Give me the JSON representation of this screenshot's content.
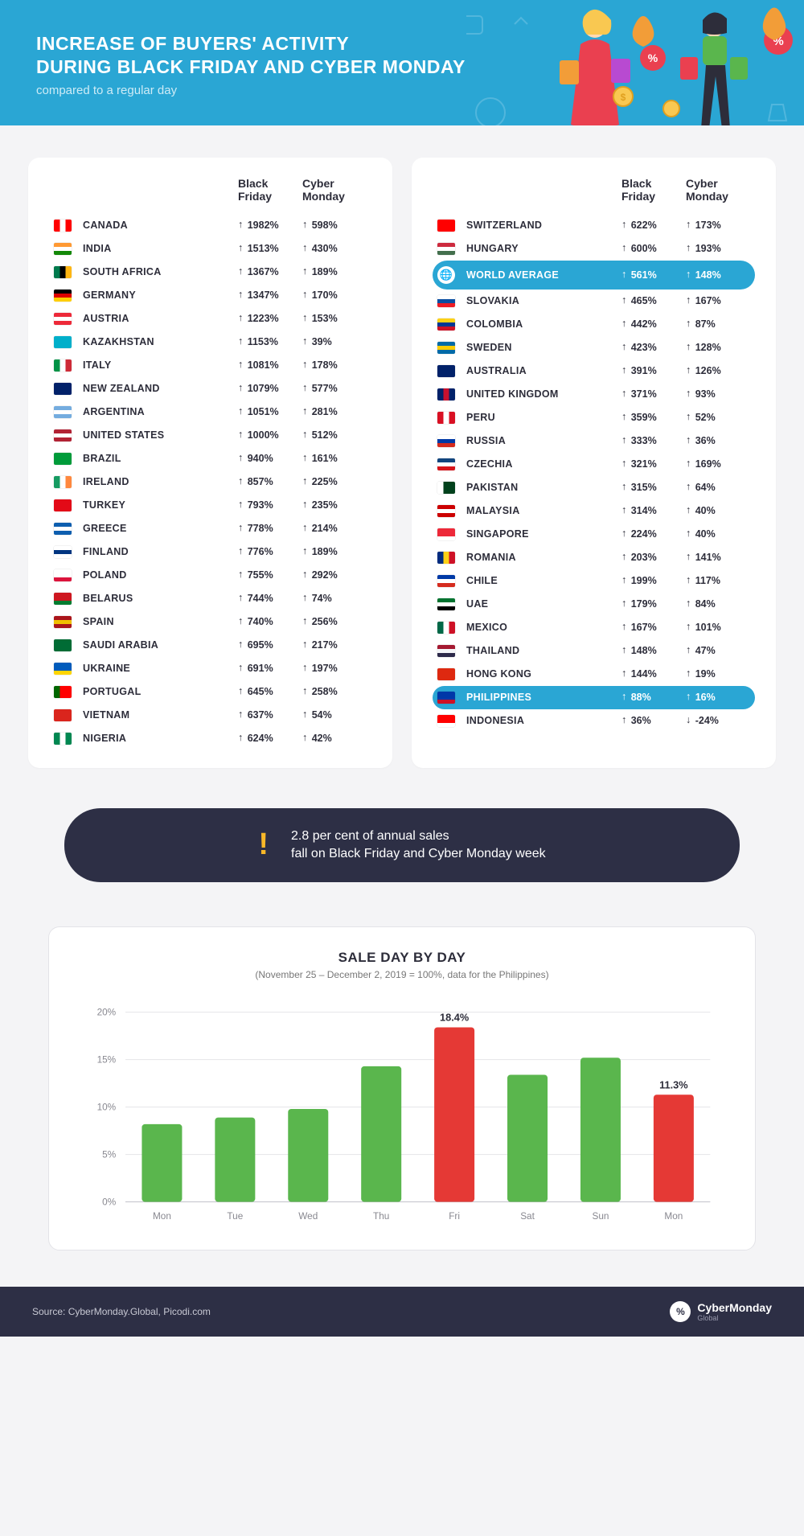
{
  "header": {
    "title_line1": "INCREASE OF BUYERS' ACTIVITY",
    "title_line2": "DURING BLACK FRIDAY AND CYBER MONDAY",
    "subtitle": "compared to a regular day",
    "bg_color": "#2aa6d4",
    "text_color": "#ffffff",
    "sub_text_color": "#cdebf6"
  },
  "table": {
    "col_bf": "Black\nFriday",
    "col_cm": "Cyber\nMonday",
    "arrow_up": "↑",
    "arrow_down": "↓",
    "highlight_bg": "#2aa6d4",
    "highlight_text": "#ffffff"
  },
  "left": [
    {
      "name": "CANADA",
      "bf": "1982%",
      "cm": "598%",
      "flag": [
        "#ff0000",
        "#ffffff",
        "#ff0000"
      ],
      "dir_bf": "up",
      "dir_cm": "up"
    },
    {
      "name": "INDIA",
      "bf": "1513%",
      "cm": "430%",
      "flag": [
        "#ff9933",
        "#ffffff",
        "#138808"
      ],
      "orient": "h",
      "dir_bf": "up",
      "dir_cm": "up"
    },
    {
      "name": "SOUTH AFRICA",
      "bf": "1367%",
      "cm": "189%",
      "flag": [
        "#007a4d",
        "#000000",
        "#ffb612"
      ],
      "dir_bf": "up",
      "dir_cm": "up"
    },
    {
      "name": "GERMANY",
      "bf": "1347%",
      "cm": "170%",
      "flag": [
        "#000000",
        "#dd0000",
        "#ffce00"
      ],
      "orient": "h",
      "dir_bf": "up",
      "dir_cm": "up"
    },
    {
      "name": "AUSTRIA",
      "bf": "1223%",
      "cm": "153%",
      "flag": [
        "#ed2939",
        "#ffffff",
        "#ed2939"
      ],
      "orient": "h",
      "dir_bf": "up",
      "dir_cm": "up"
    },
    {
      "name": "KAZAKHSTAN",
      "bf": "1153%",
      "cm": "39%",
      "flag": [
        "#00afca",
        "#00afca",
        "#00afca"
      ],
      "dir_bf": "up",
      "dir_cm": "up"
    },
    {
      "name": "ITALY",
      "bf": "1081%",
      "cm": "178%",
      "flag": [
        "#009246",
        "#ffffff",
        "#ce2b37"
      ],
      "dir_bf": "up",
      "dir_cm": "up"
    },
    {
      "name": "NEW ZEALAND",
      "bf": "1079%",
      "cm": "577%",
      "flag": [
        "#012169",
        "#012169",
        "#012169"
      ],
      "dir_bf": "up",
      "dir_cm": "up"
    },
    {
      "name": "ARGENTINA",
      "bf": "1051%",
      "cm": "281%",
      "flag": [
        "#74acdf",
        "#ffffff",
        "#74acdf"
      ],
      "orient": "h",
      "dir_bf": "up",
      "dir_cm": "up"
    },
    {
      "name": "UNITED STATES",
      "bf": "1000%",
      "cm": "512%",
      "flag": [
        "#b22234",
        "#ffffff",
        "#b22234"
      ],
      "orient": "h",
      "dir_bf": "up",
      "dir_cm": "up"
    },
    {
      "name": "BRAZIL",
      "bf": "940%",
      "cm": "161%",
      "flag": [
        "#009b3a",
        "#009b3a",
        "#009b3a"
      ],
      "dir_bf": "up",
      "dir_cm": "up"
    },
    {
      "name": "IRELAND",
      "bf": "857%",
      "cm": "225%",
      "flag": [
        "#169b62",
        "#ffffff",
        "#ff883e"
      ],
      "dir_bf": "up",
      "dir_cm": "up"
    },
    {
      "name": "TURKEY",
      "bf": "793%",
      "cm": "235%",
      "flag": [
        "#e30a17",
        "#e30a17",
        "#e30a17"
      ],
      "dir_bf": "up",
      "dir_cm": "up"
    },
    {
      "name": "GREECE",
      "bf": "778%",
      "cm": "214%",
      "flag": [
        "#0d5eaf",
        "#ffffff",
        "#0d5eaf"
      ],
      "orient": "h",
      "dir_bf": "up",
      "dir_cm": "up"
    },
    {
      "name": "FINLAND",
      "bf": "776%",
      "cm": "189%",
      "flag": [
        "#ffffff",
        "#003580",
        "#ffffff"
      ],
      "orient": "h",
      "dir_bf": "up",
      "dir_cm": "up"
    },
    {
      "name": "POLAND",
      "bf": "755%",
      "cm": "292%",
      "flag": [
        "#ffffff",
        "#ffffff",
        "#dc143c"
      ],
      "orient": "h",
      "dir_bf": "up",
      "dir_cm": "up"
    },
    {
      "name": "BELARUS",
      "bf": "744%",
      "cm": "74%",
      "flag": [
        "#ce1720",
        "#ce1720",
        "#007c30"
      ],
      "orient": "h",
      "dir_bf": "up",
      "dir_cm": "up"
    },
    {
      "name": "SPAIN",
      "bf": "740%",
      "cm": "256%",
      "flag": [
        "#aa151b",
        "#f1bf00",
        "#aa151b"
      ],
      "orient": "h",
      "dir_bf": "up",
      "dir_cm": "up"
    },
    {
      "name": "SAUDI ARABIA",
      "bf": "695%",
      "cm": "217%",
      "flag": [
        "#006c35",
        "#006c35",
        "#006c35"
      ],
      "dir_bf": "up",
      "dir_cm": "up"
    },
    {
      "name": "UKRAINE",
      "bf": "691%",
      "cm": "197%",
      "flag": [
        "#005bbb",
        "#005bbb",
        "#ffd500"
      ],
      "orient": "h",
      "dir_bf": "up",
      "dir_cm": "up"
    },
    {
      "name": "PORTUGAL",
      "bf": "645%",
      "cm": "258%",
      "flag": [
        "#006600",
        "#ff0000",
        "#ff0000"
      ],
      "dir_bf": "up",
      "dir_cm": "up"
    },
    {
      "name": "VIETNAM",
      "bf": "637%",
      "cm": "54%",
      "flag": [
        "#da251d",
        "#da251d",
        "#da251d"
      ],
      "dir_bf": "up",
      "dir_cm": "up"
    },
    {
      "name": "NIGERIA",
      "bf": "624%",
      "cm": "42%",
      "flag": [
        "#008751",
        "#ffffff",
        "#008751"
      ],
      "dir_bf": "up",
      "dir_cm": "up"
    }
  ],
  "right": [
    {
      "name": "SWITZERLAND",
      "bf": "622%",
      "cm": "173%",
      "flag": [
        "#ff0000",
        "#ff0000",
        "#ff0000"
      ],
      "dir_bf": "up",
      "dir_cm": "up"
    },
    {
      "name": "HUNGARY",
      "bf": "600%",
      "cm": "193%",
      "flag": [
        "#cd2a3e",
        "#ffffff",
        "#436f4d"
      ],
      "orient": "h",
      "dir_bf": "up",
      "dir_cm": "up"
    },
    {
      "name": "WORLD AVERAGE",
      "bf": "561%",
      "cm": "148%",
      "globe": true,
      "highlight": true,
      "dir_bf": "up",
      "dir_cm": "up"
    },
    {
      "name": "SLOVAKIA",
      "bf": "465%",
      "cm": "167%",
      "flag": [
        "#ffffff",
        "#0b4ea2",
        "#ee1c25"
      ],
      "orient": "h",
      "dir_bf": "up",
      "dir_cm": "up"
    },
    {
      "name": "COLOMBIA",
      "bf": "442%",
      "cm": "87%",
      "flag": [
        "#fcd116",
        "#003893",
        "#ce1126"
      ],
      "orient": "h",
      "dir_bf": "up",
      "dir_cm": "up"
    },
    {
      "name": "SWEDEN",
      "bf": "423%",
      "cm": "128%",
      "flag": [
        "#006aa7",
        "#fecc00",
        "#006aa7"
      ],
      "orient": "h",
      "dir_bf": "up",
      "dir_cm": "up"
    },
    {
      "name": "AUSTRALIA",
      "bf": "391%",
      "cm": "126%",
      "flag": [
        "#012169",
        "#012169",
        "#012169"
      ],
      "dir_bf": "up",
      "dir_cm": "up"
    },
    {
      "name": "UNITED KINGDOM",
      "bf": "371%",
      "cm": "93%",
      "flag": [
        "#012169",
        "#c8102e",
        "#012169"
      ],
      "dir_bf": "up",
      "dir_cm": "up"
    },
    {
      "name": "PERU",
      "bf": "359%",
      "cm": "52%",
      "flag": [
        "#d91023",
        "#ffffff",
        "#d91023"
      ],
      "dir_bf": "up",
      "dir_cm": "up"
    },
    {
      "name": "RUSSIA",
      "bf": "333%",
      "cm": "36%",
      "flag": [
        "#ffffff",
        "#0039a6",
        "#d52b1e"
      ],
      "orient": "h",
      "dir_bf": "up",
      "dir_cm": "up"
    },
    {
      "name": "CZECHIA",
      "bf": "321%",
      "cm": "169%",
      "flag": [
        "#11457e",
        "#ffffff",
        "#d7141a"
      ],
      "orient": "h",
      "dir_bf": "up",
      "dir_cm": "up"
    },
    {
      "name": "PAKISTAN",
      "bf": "315%",
      "cm": "64%",
      "flag": [
        "#ffffff",
        "#01411c",
        "#01411c"
      ],
      "dir_bf": "up",
      "dir_cm": "up"
    },
    {
      "name": "MALAYSIA",
      "bf": "314%",
      "cm": "40%",
      "flag": [
        "#cc0001",
        "#ffffff",
        "#cc0001"
      ],
      "orient": "h",
      "dir_bf": "up",
      "dir_cm": "up"
    },
    {
      "name": "SINGAPORE",
      "bf": "224%",
      "cm": "40%",
      "flag": [
        "#ed2939",
        "#ed2939",
        "#ffffff"
      ],
      "orient": "h",
      "dir_bf": "up",
      "dir_cm": "up"
    },
    {
      "name": "ROMANIA",
      "bf": "203%",
      "cm": "141%",
      "flag": [
        "#002b7f",
        "#fcd116",
        "#ce1126"
      ],
      "dir_bf": "up",
      "dir_cm": "up"
    },
    {
      "name": "CHILE",
      "bf": "199%",
      "cm": "117%",
      "flag": [
        "#0039a6",
        "#ffffff",
        "#d52b1e"
      ],
      "orient": "h",
      "dir_bf": "up",
      "dir_cm": "up"
    },
    {
      "name": "UAE",
      "bf": "179%",
      "cm": "84%",
      "flag": [
        "#00732f",
        "#ffffff",
        "#000000"
      ],
      "orient": "h",
      "dir_bf": "up",
      "dir_cm": "up"
    },
    {
      "name": "MEXICO",
      "bf": "167%",
      "cm": "101%",
      "flag": [
        "#006847",
        "#ffffff",
        "#ce1126"
      ],
      "dir_bf": "up",
      "dir_cm": "up"
    },
    {
      "name": "THAILAND",
      "bf": "148%",
      "cm": "47%",
      "flag": [
        "#a51931",
        "#f4f5f8",
        "#2d2a4a"
      ],
      "orient": "h",
      "dir_bf": "up",
      "dir_cm": "up"
    },
    {
      "name": "HONG KONG",
      "bf": "144%",
      "cm": "19%",
      "flag": [
        "#de2910",
        "#de2910",
        "#de2910"
      ],
      "dir_bf": "up",
      "dir_cm": "up"
    },
    {
      "name": "PHILIPPINES",
      "bf": "88%",
      "cm": "16%",
      "flag": [
        "#0038a8",
        "#0038a8",
        "#ce1126"
      ],
      "orient": "h",
      "highlight": true,
      "dir_bf": "up",
      "dir_cm": "up"
    },
    {
      "name": "INDONESIA",
      "bf": "36%",
      "cm": "-24%",
      "flag": [
        "#ff0000",
        "#ff0000",
        "#ffffff"
      ],
      "orient": "h",
      "dir_bf": "up",
      "dir_cm": "down"
    }
  ],
  "callout": {
    "exclamation": "!",
    "line1": "2.8 per cent of annual sales",
    "line2": "fall on Black Friday and Cyber Monday week",
    "bg_color": "#2d2f45",
    "accent_color": "#f9b828",
    "text_color": "#ffffff"
  },
  "chart": {
    "title": "SALE DAY BY DAY",
    "subtitle": "(November 25 – December 2, 2019 = 100%, data for the Philippines)",
    "categories": [
      "Mon",
      "Tue",
      "Wed",
      "Thu",
      "Fri",
      "Sat",
      "Sun",
      "Mon"
    ],
    "values": [
      8.2,
      8.9,
      9.8,
      14.3,
      18.4,
      13.4,
      15.2,
      11.3
    ],
    "value_labels": [
      "",
      "",
      "",
      "",
      "18.4%",
      "",
      "",
      "11.3%"
    ],
    "bar_colors": [
      "#5ab64d",
      "#5ab64d",
      "#5ab64d",
      "#5ab64d",
      "#e53935",
      "#5ab64d",
      "#5ab64d",
      "#e53935"
    ],
    "ylim": [
      0,
      20
    ],
    "ytick_step": 5,
    "grid_color": "#e4e4e8",
    "axis_color": "#bcbcc4",
    "label_color": "#888890",
    "label_fontsize": 12,
    "bar_width_ratio": 0.55,
    "bg_color": "#ffffff"
  },
  "footer": {
    "source": "Source: CyberMonday.Global, Picodi.com",
    "logo_icon": "%",
    "logo_text": "CyberMonday",
    "logo_sub": "Global",
    "bg_color": "#2d2f45"
  }
}
